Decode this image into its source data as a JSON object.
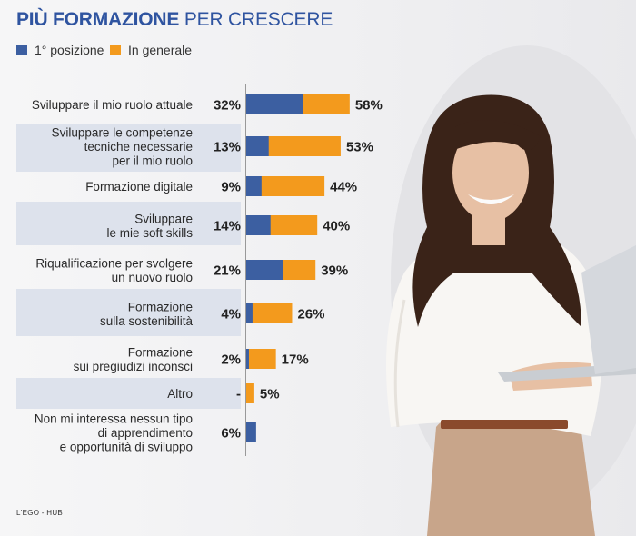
{
  "title": {
    "bold": "PIÙ FORMAZIONE",
    "rest": " PER CRESCERE"
  },
  "source": "L'EGO - HUB",
  "colors": {
    "primary": "#3c5fa1",
    "secondary": "#f39a1d",
    "band": "#dde2ec",
    "title": "#2f54a0"
  },
  "chart_data": {
    "type": "bar",
    "orientation": "horizontal",
    "stacking": "overlay",
    "unit": "%",
    "categories": [
      [
        "Sviluppare il mio ruolo attuale"
      ],
      [
        "Sviluppare le competenze",
        "tecniche necessarie",
        "per il mio ruolo"
      ],
      [
        "Formazione digitale"
      ],
      [
        "Sviluppare",
        "le mie soft skills"
      ],
      [
        "Riqualificazione per svolgere",
        "un nuovo ruolo"
      ],
      [
        "Formazione",
        "sulla sostenibilità"
      ],
      [
        "Formazione",
        "sui pregiudizi inconsci"
      ],
      [
        "Altro"
      ],
      [
        "Non mi interessa nessun tipo",
        "di apprendimento",
        "e opportunità di sviluppo"
      ]
    ],
    "series": [
      {
        "name": "1° posizione",
        "color": "#3c5fa1",
        "values": [
          32,
          13,
          9,
          14,
          21,
          4,
          2,
          null,
          6
        ],
        "labels": [
          "32%",
          "13%",
          "9%",
          "14%",
          "21%",
          "4%",
          "2%",
          "-",
          "6%"
        ]
      },
      {
        "name": "In generale",
        "color": "#f39a1d",
        "values": [
          58,
          53,
          44,
          40,
          39,
          26,
          17,
          5,
          null
        ],
        "labels": [
          "58%",
          "53%",
          "44%",
          "40%",
          "39%",
          "26%",
          "17%",
          "5%",
          ""
        ]
      }
    ],
    "xlim": [
      0,
      100
    ],
    "banded_rows": [
      1,
      3,
      5,
      7
    ],
    "grid": false
  }
}
